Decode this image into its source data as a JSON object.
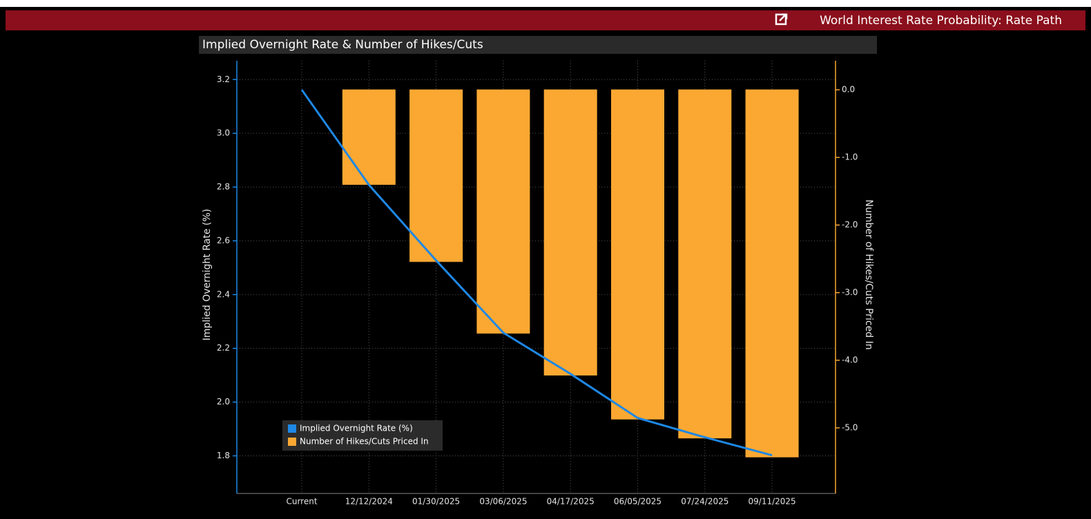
{
  "header": {
    "title": "World Interest Rate Probability: Rate Path"
  },
  "chart_data": {
    "type": "bar",
    "title": "Implied Overnight Rate & Number of Hikes/Cuts",
    "y_label": "Implied Overnight Rate (%)",
    "y2_label": "Number of Hikes/Cuts Priced In",
    "categories": [
      "Current",
      "12/12/2024",
      "01/30/2025",
      "03/06/2025",
      "04/17/2025",
      "06/05/2025",
      "07/24/2025",
      "09/11/2025"
    ],
    "series": [
      {
        "name": "Implied Overnight Rate (%)",
        "type": "line",
        "color": "#1e88e5",
        "axis": "y",
        "values": [
          3.162,
          2.808,
          2.527,
          2.258,
          2.105,
          1.941,
          1.869,
          1.802
        ]
      },
      {
        "name": "Number of Hikes/Cuts Priced In",
        "type": "bar",
        "color": "#fba832",
        "axis": "y2",
        "values": [
          0,
          -1.4,
          -2.54,
          -3.6,
          -4.22,
          -4.87,
          -5.15,
          -5.43
        ]
      }
    ],
    "ylim": [
      1.66,
      3.27
    ],
    "yticks": [
      1.8,
      {
        "value": 2,
        "label": "2.0"
      },
      2.2,
      2.4,
      2.6,
      2.8,
      {
        "value": 3,
        "label": "3.0"
      },
      3.2
    ],
    "y2lim": [
      -5.97,
      0.43
    ],
    "y2ticks": [
      {
        "value": -5,
        "label": "-5.0"
      },
      {
        "value": -4,
        "label": "-4.0"
      },
      {
        "value": -3,
        "label": "-3.0"
      },
      {
        "value": -2,
        "label": "-2.0"
      },
      {
        "value": -1,
        "label": "-1.0"
      },
      {
        "value": 0,
        "label": "0.0"
      }
    ],
    "grid": true,
    "legend": "lower-left"
  }
}
